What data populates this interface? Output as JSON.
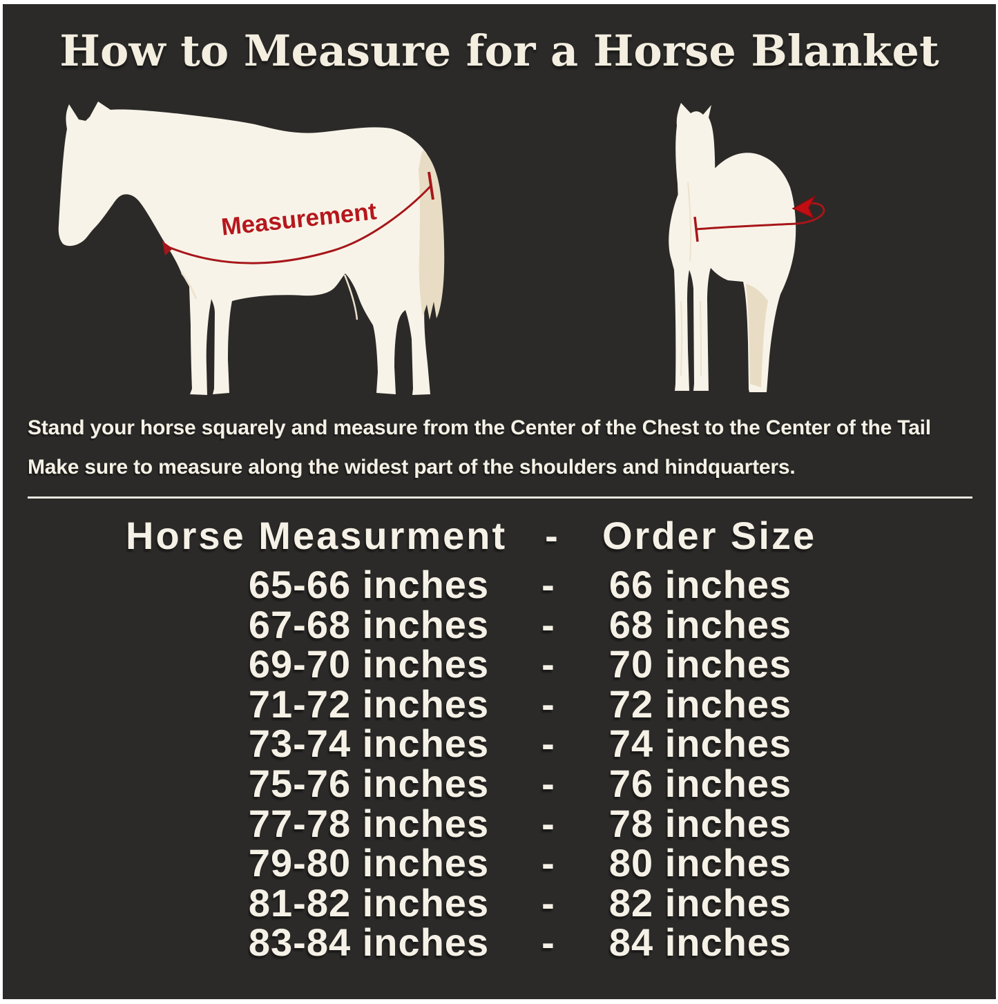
{
  "header": {
    "title": "How to Measure for a Horse Blanket"
  },
  "diagram": {
    "side_view_label": "Measurement"
  },
  "instructions": {
    "line1": "Stand your horse squarely and measure from the Center of the Chest to the Center of the Tail",
    "line2": "Make sure to measure along the widest part of the shoulders and hindquarters."
  },
  "size_table": {
    "column1_header": "Horse Measurment",
    "separator": "-",
    "column2_header": "Order Size",
    "rows": [
      {
        "measurement": "65-66 inches",
        "order": "66 inches"
      },
      {
        "measurement": "67-68 inches",
        "order": "68 inches"
      },
      {
        "measurement": "69-70 inches",
        "order": "70 inches"
      },
      {
        "measurement": "71-72 inches",
        "order": "72 inches"
      },
      {
        "measurement": "73-74 inches",
        "order": "74 inches"
      },
      {
        "measurement": "75-76 inches",
        "order": "76 inches"
      },
      {
        "measurement": "77-78 inches",
        "order": "78 inches"
      },
      {
        "measurement": "79-80 inches",
        "order": "80 inches"
      },
      {
        "measurement": "81-82 inches",
        "order": "82 inches"
      },
      {
        "measurement": "83-84 inches",
        "order": "84 inches"
      }
    ]
  },
  "colors": {
    "background": "#2b2a28",
    "frame": "#ffffff",
    "cream_text": "#f5f1e6",
    "horse_body": "#f8f3e8",
    "tail_beige": "#e8ddc4",
    "measure_red": "#a6161a",
    "label_red": "#b5171d",
    "arrow_red": "#c10e13"
  }
}
